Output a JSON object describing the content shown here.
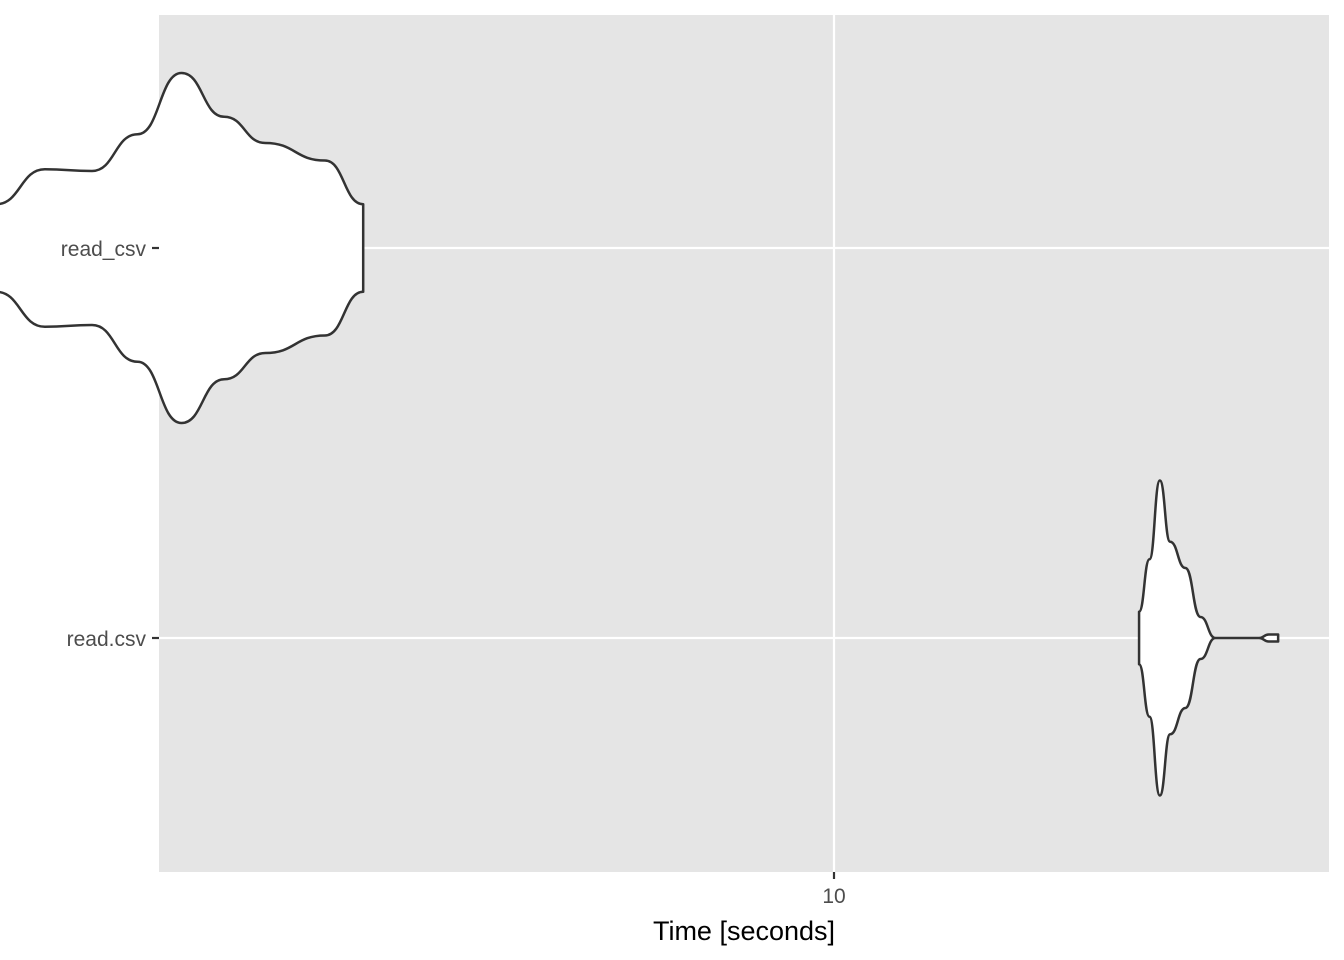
{
  "chart_data": {
    "type": "violin",
    "title": "",
    "xlabel": "Time [seconds]",
    "ylabel": "",
    "x_scale": "log",
    "x_ticks": [
      10
    ],
    "x_tick_labels": [
      "10"
    ],
    "categories": [
      "read_csv",
      "read.csv"
    ],
    "grid": true,
    "legend": "none",
    "colors": {
      "panel": "#e5e5e5",
      "grid": "#ffffff",
      "violin_fill": "#ffffff",
      "violin_stroke": "#333333"
    },
    "series": [
      {
        "name": "read_csv",
        "min": 5.3,
        "max": 7.0,
        "density": [
          [
            5.3,
            0.25
          ],
          [
            5.5,
            0.45
          ],
          [
            5.7,
            0.44
          ],
          [
            5.9,
            0.65
          ],
          [
            6.1,
            1.0
          ],
          [
            6.3,
            0.75
          ],
          [
            6.5,
            0.6
          ],
          [
            6.8,
            0.5
          ],
          [
            7.0,
            0.25
          ]
        ]
      },
      {
        "name": "read.csv",
        "min": 12.6,
        "max": 14.0,
        "density": [
          [
            12.6,
            0.15
          ],
          [
            12.7,
            0.45
          ],
          [
            12.8,
            0.9
          ],
          [
            12.9,
            0.55
          ],
          [
            13.05,
            0.4
          ],
          [
            13.2,
            0.12
          ],
          [
            13.35,
            0.0
          ],
          [
            13.8,
            0.0
          ],
          [
            13.9,
            0.02
          ],
          [
            14.0,
            0.02
          ]
        ]
      }
    ]
  }
}
